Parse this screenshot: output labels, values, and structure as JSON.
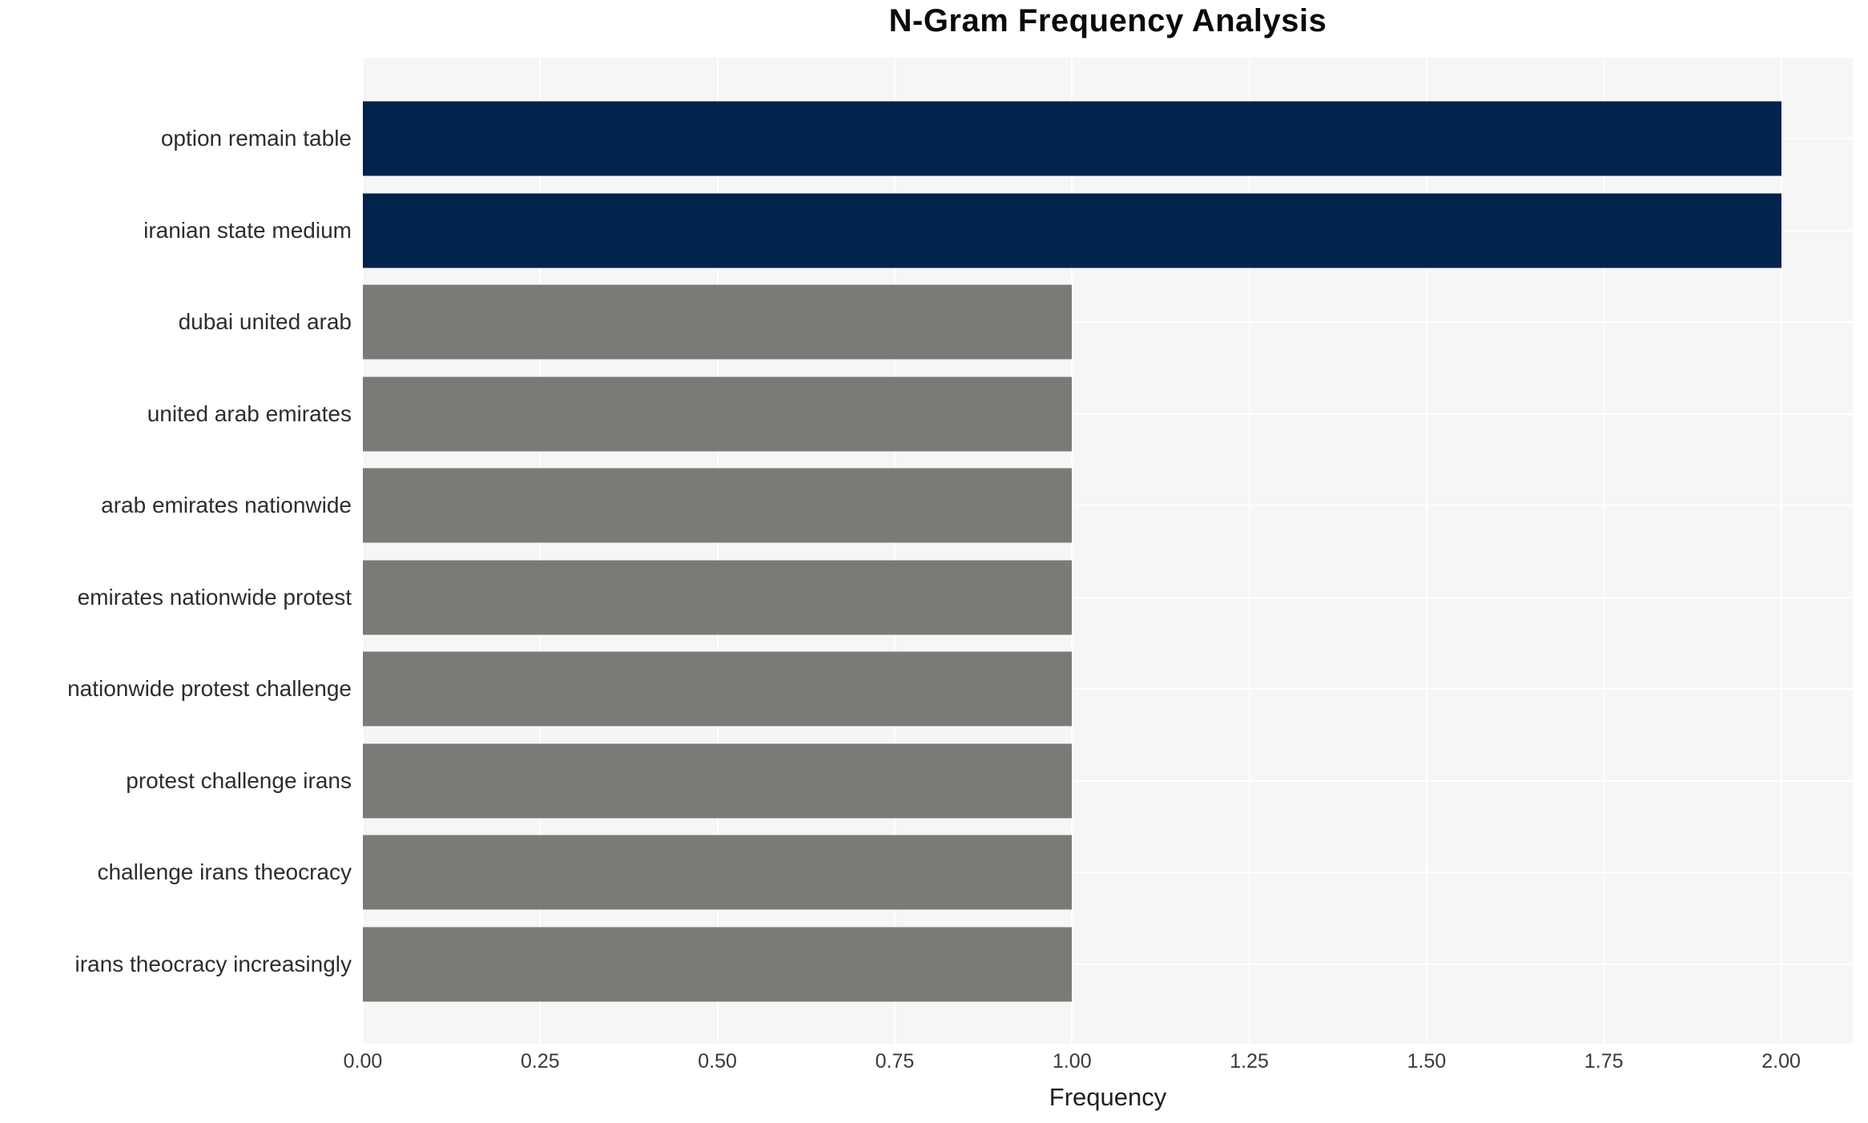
{
  "chart_data": {
    "type": "bar",
    "orientation": "horizontal",
    "title": "N-Gram Frequency Analysis",
    "xlabel": "Frequency",
    "ylabel": "",
    "categories": [
      "option remain table",
      "iranian state medium",
      "dubai united arab",
      "united arab emirates",
      "arab emirates nationwide",
      "emirates nationwide protest",
      "nationwide protest challenge",
      "protest challenge irans",
      "challenge irans theocracy",
      "irans theocracy increasingly"
    ],
    "values": [
      2,
      2,
      1,
      1,
      1,
      1,
      1,
      1,
      1,
      1
    ],
    "bar_colors": [
      "#02234C",
      "#02234C",
      "#7B7A77",
      "#7B7A77",
      "#7B7A77",
      "#7B7A77",
      "#7B7A77",
      "#7B7A77",
      "#7B7A77",
      "#7B7A77"
    ],
    "x_ticks": [
      0,
      0.25,
      0.5,
      0.75,
      1.0,
      1.25,
      1.5,
      1.75,
      2.0
    ],
    "x_tick_labels": [
      "0.00",
      "0.25",
      "0.50",
      "0.75",
      "1.00",
      "1.25",
      "1.50",
      "1.75",
      "2.00"
    ],
    "xlim": [
      0,
      2.101
    ],
    "grid": "white gridlines at x ticks and at category centers, on light gray plot background",
    "legend_position": "none",
    "colors": {
      "highlight": "#02234C",
      "muted": "#7B7A77",
      "plot_background": "#F6F6F6",
      "page_background": "#FFFFFF"
    }
  }
}
